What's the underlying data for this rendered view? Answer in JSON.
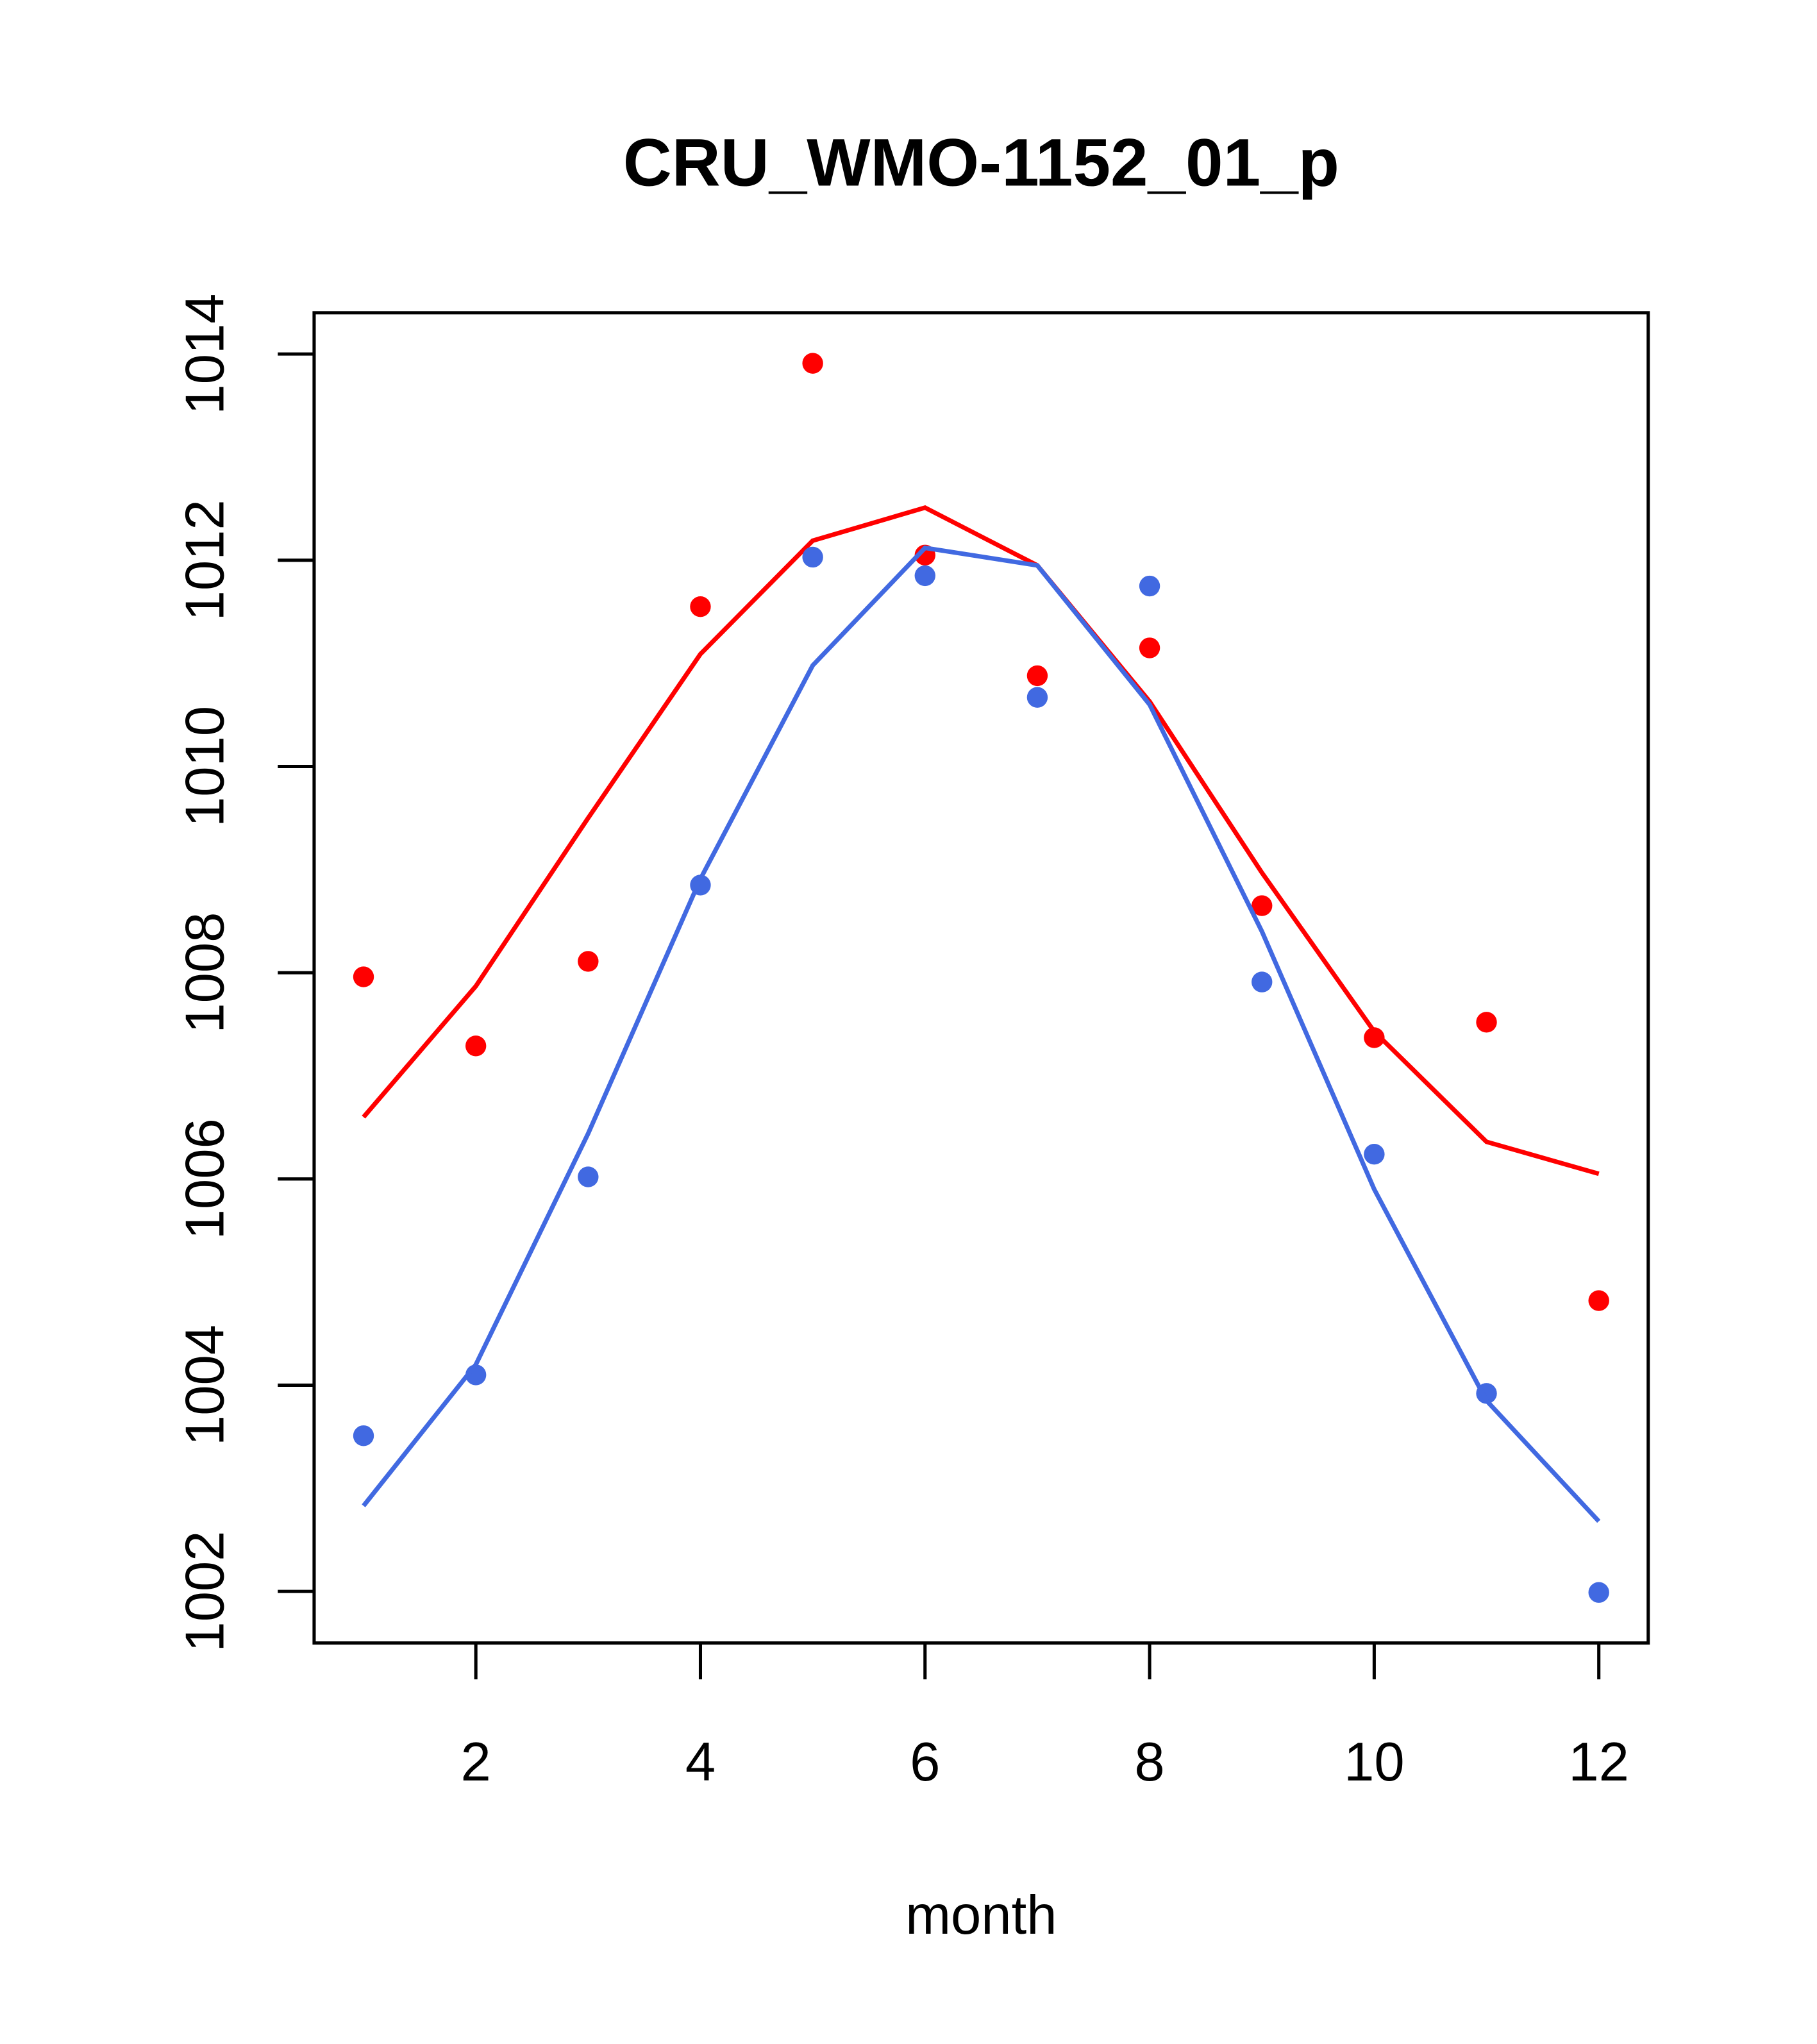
{
  "chart_data": {
    "type": "line",
    "title": "CRU_WMO-1152_01_p",
    "xlabel": "month",
    "ylabel": "",
    "xlim": [
      0.56,
      12.44
    ],
    "ylim": [
      1001.5,
      1014.4
    ],
    "x_ticks": [
      2,
      4,
      6,
      8,
      10,
      12
    ],
    "y_ticks": [
      1002,
      1004,
      1006,
      1008,
      1010,
      1012,
      1014
    ],
    "x": [
      1,
      2,
      3,
      4,
      5,
      6,
      7,
      8,
      9,
      10,
      11,
      12
    ],
    "series": [
      {
        "name": "red points",
        "kind": "scatter",
        "color": "#ff0000",
        "values": [
          1007.96,
          1007.29,
          1008.11,
          1011.55,
          1013.91,
          1012.05,
          1010.88,
          1011.15,
          1008.65,
          1007.37,
          1007.52,
          1004.82
        ]
      },
      {
        "name": "red line",
        "kind": "line",
        "color": "#ff0000",
        "values": [
          1006.6,
          1007.87,
          1009.5,
          1011.09,
          1012.19,
          1012.51,
          1011.95,
          1010.63,
          1008.97,
          1007.43,
          1006.36,
          1006.05
        ]
      },
      {
        "name": "blue points",
        "kind": "scatter",
        "color": "#4169e1",
        "values": [
          1003.51,
          1004.1,
          1006.02,
          1008.85,
          1012.03,
          1011.85,
          1010.67,
          1011.75,
          1007.91,
          1006.24,
          1003.92,
          1001.99
        ]
      },
      {
        "name": "blue line",
        "kind": "line",
        "color": "#4169e1",
        "values": [
          1002.83,
          1004.2,
          1006.44,
          1008.91,
          1010.98,
          1012.12,
          1011.95,
          1010.6,
          1008.4,
          1005.9,
          1003.85,
          1002.68
        ]
      }
    ],
    "grid": false,
    "legend": "none"
  }
}
